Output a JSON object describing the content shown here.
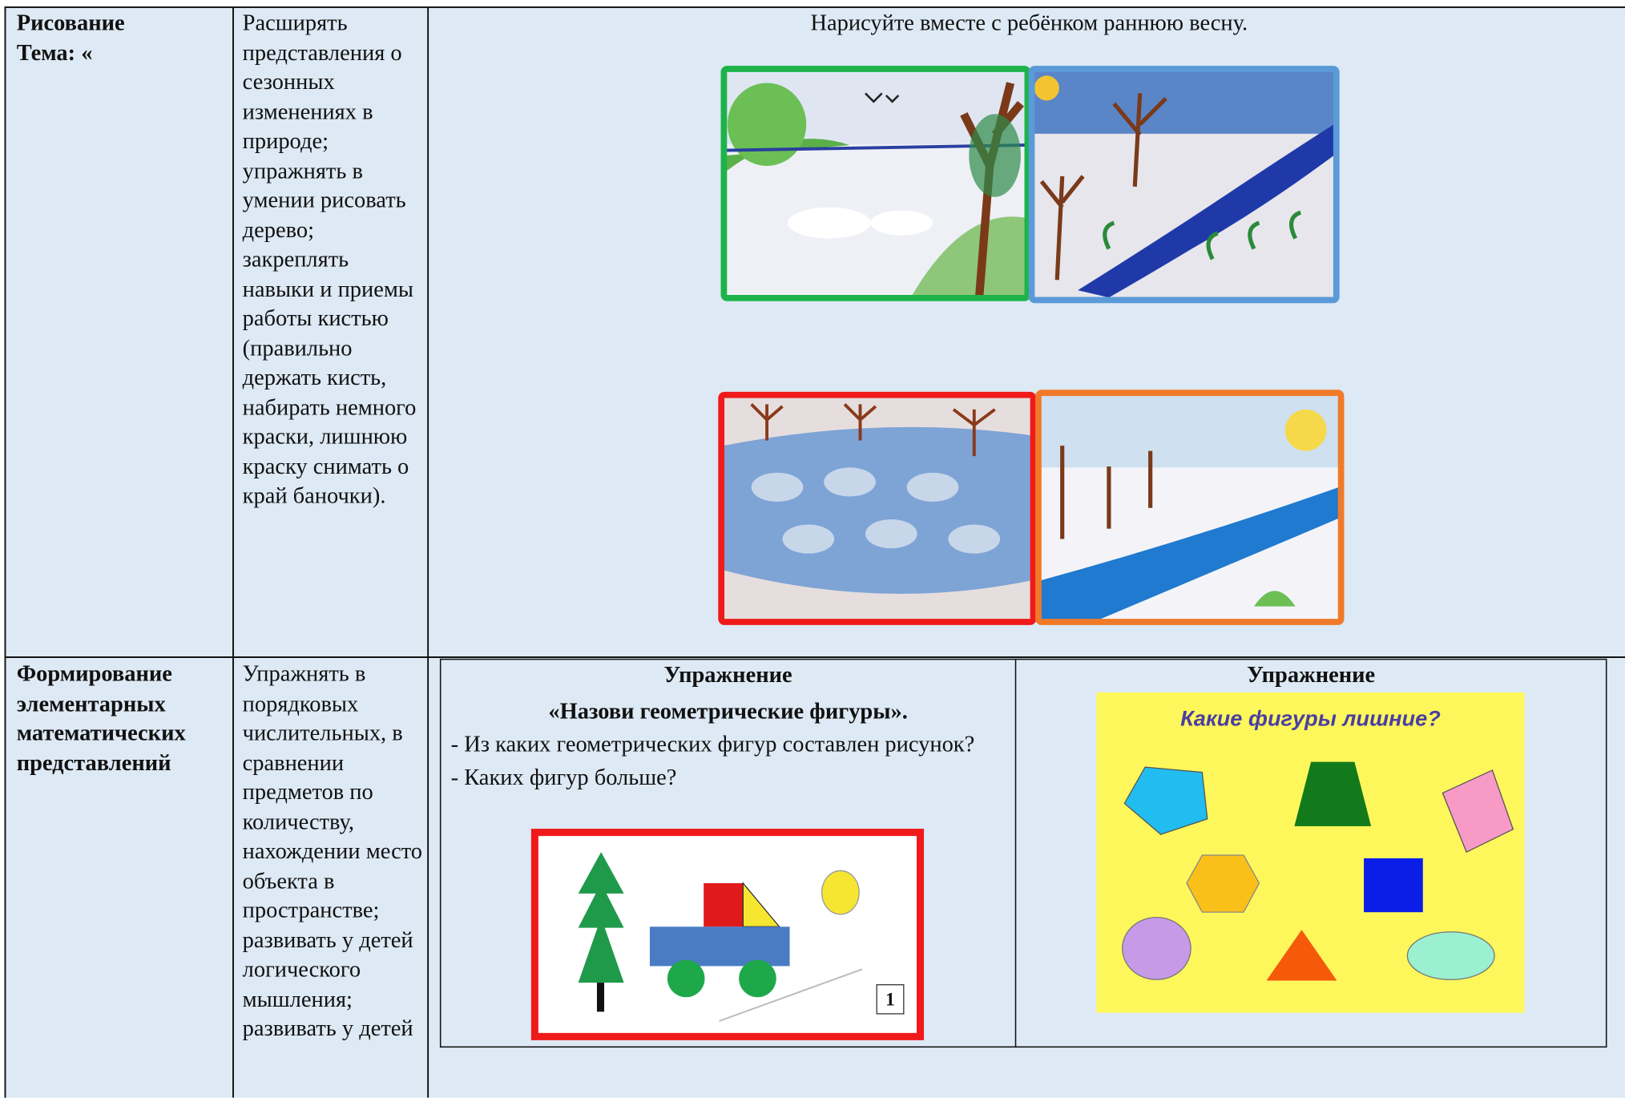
{
  "table": {
    "rows": [
      {
        "subject": [
          "Рисование",
          "Тема: «"
        ],
        "goals": "Расширять представления о сезонных изменениях в природе; упражнять в умении рисовать дерево; закреплять навыки и приемы работы кистью (правильно держать кисть, набирать немного краски, лишнюю краску снимать о край баночки).",
        "content": {
          "text": "Нарисуйте вместе с ребёнком раннюю весну."
        }
      },
      {
        "subject": [
          "Формирование элементарных математических представлений"
        ],
        "goals": "Упражнять в порядковых числительных, в сравнении предметов по количеству, нахождении место объекта в пространстве; развивать у детей логического мышления; развивать у детей",
        "exercises": [
          {
            "heading": "Упражнение",
            "name": "«Назови геометрические фигуры».",
            "lines": [
              "- Из каких геометрических фигур составлен рисунок?",
              "- Каких фигур больше?"
            ],
            "figure_label": "1"
          },
          {
            "heading": "Упражнение",
            "image_caption": "Какие фигуры лишние?"
          }
        ]
      }
    ]
  }
}
